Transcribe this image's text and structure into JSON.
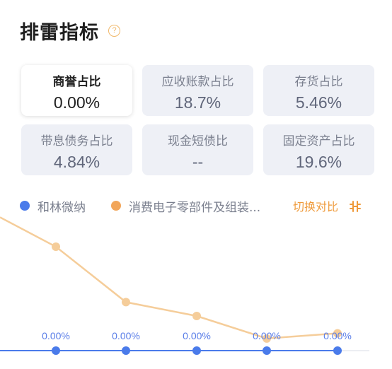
{
  "header": {
    "title": "排雷指标",
    "help_glyph": "?"
  },
  "cards": [
    {
      "label": "商誉占比",
      "value": "0.00%",
      "active": true
    },
    {
      "label": "应收账款占比",
      "value": "18.7%",
      "active": false
    },
    {
      "label": "存货占比",
      "value": "5.46%",
      "active": false
    },
    {
      "label": "带息债务占比",
      "value": "4.84%",
      "active": false
    },
    {
      "label": "现金短债比",
      "value": "--",
      "active": false
    },
    {
      "label": "固定资产占比",
      "value": "19.6%",
      "active": false
    }
  ],
  "legend": [
    {
      "name": "和林微纳",
      "color": "#4a7bea"
    },
    {
      "name": "消费电子零部件及组装...",
      "color": "#f2a65a"
    }
  ],
  "switch_label": "切换对比",
  "switch_icon": "switch-icon",
  "chart_data": {
    "type": "line",
    "series": [
      {
        "name": "和林微纳",
        "color": "#4a7bea",
        "values": [
          0,
          0,
          0,
          0,
          0
        ]
      },
      {
        "name": "消费电子零部件及组装...",
        "color": "#f5cd9a",
        "values": [
          3.0,
          1.4,
          1.0,
          0.35,
          0.5
        ]
      }
    ],
    "data_labels": [
      "0.00%",
      "0.00%",
      "0.00%",
      "0.00%",
      "0.00%"
    ],
    "partial_label_left": "0",
    "grid": false
  }
}
